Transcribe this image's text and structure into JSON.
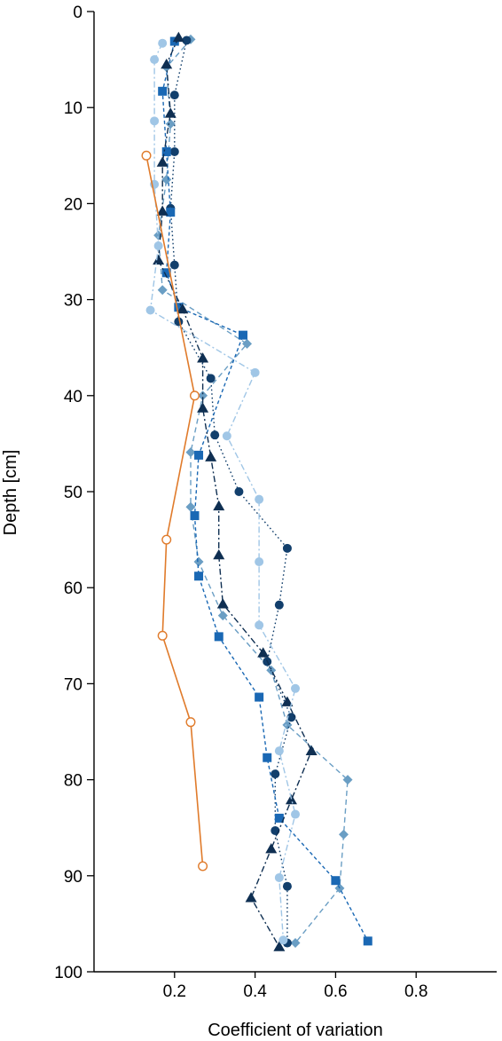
{
  "chart_data": {
    "type": "line",
    "xlabel": "Coefficient of variation",
    "ylabel": "Depth [cm]",
    "xlim": [
      0,
      1
    ],
    "ylim": [
      100,
      0
    ],
    "x_ticks": [
      0.2,
      0.4,
      0.6,
      0.8
    ],
    "x_tick_labels": [
      "0.2",
      "0.4",
      "0.6",
      "0.8"
    ],
    "y_ticks": [
      0,
      10,
      20,
      30,
      40,
      50,
      60,
      70,
      80,
      90,
      100
    ],
    "y_tick_labels": [
      "0",
      "10",
      "20",
      "30",
      "40",
      "50",
      "60",
      "70",
      "80",
      "90",
      "100"
    ],
    "grid": false,
    "series": [
      {
        "marker": "diamond",
        "line": "long-dash",
        "color": "#6a9ec4",
        "points": [
          [
            0.24,
            2.9
          ],
          [
            0.18,
            5.8
          ],
          [
            0.19,
            11.7
          ],
          [
            0.18,
            17.5
          ],
          [
            0.16,
            23.3
          ],
          [
            0.17,
            29
          ],
          [
            0.38,
            34.6
          ],
          [
            0.27,
            40
          ],
          [
            0.24,
            45.9
          ],
          [
            0.24,
            51.6
          ],
          [
            0.26,
            57.3
          ],
          [
            0.32,
            62.9
          ],
          [
            0.44,
            68.6
          ],
          [
            0.48,
            74.3
          ],
          [
            0.63,
            80
          ],
          [
            0.62,
            85.7
          ],
          [
            0.61,
            91.3
          ],
          [
            0.5,
            97
          ]
        ]
      },
      {
        "marker": "circle-filled",
        "line": "dotted",
        "color": "#123f6c",
        "points": [
          [
            0.23,
            3
          ],
          [
            0.2,
            8.7
          ],
          [
            0.2,
            14.6
          ],
          [
            0.19,
            20.5
          ],
          [
            0.2,
            26.4
          ],
          [
            0.21,
            32.3
          ],
          [
            0.29,
            38.2
          ],
          [
            0.3,
            44.1
          ],
          [
            0.36,
            50
          ],
          [
            0.48,
            55.9
          ],
          [
            0.46,
            61.8
          ],
          [
            0.43,
            67.7
          ],
          [
            0.49,
            73.5
          ],
          [
            0.45,
            79.4
          ],
          [
            0.45,
            85.3
          ],
          [
            0.48,
            91.1
          ],
          [
            0.48,
            97
          ]
        ]
      },
      {
        "marker": "square",
        "line": "short-dash",
        "color": "#1a68b4",
        "points": [
          [
            0.2,
            3.1
          ],
          [
            0.17,
            8.3
          ],
          [
            0.18,
            14.6
          ],
          [
            0.19,
            20.9
          ],
          [
            0.18,
            27.2
          ],
          [
            0.21,
            30.8
          ],
          [
            0.37,
            33.7
          ],
          [
            0.26,
            46.2
          ],
          [
            0.25,
            52.5
          ],
          [
            0.26,
            58.8
          ],
          [
            0.31,
            65.1
          ],
          [
            0.41,
            71.4
          ],
          [
            0.43,
            77.7
          ],
          [
            0.46,
            84
          ],
          [
            0.6,
            90.5
          ],
          [
            0.68,
            96.8
          ]
        ]
      },
      {
        "marker": "triangle",
        "line": "dash-dot",
        "color": "#0f2f52",
        "points": [
          [
            0.21,
            2.7
          ],
          [
            0.18,
            5.5
          ],
          [
            0.19,
            10.6
          ],
          [
            0.17,
            15.7
          ],
          [
            0.17,
            20.8
          ],
          [
            0.16,
            25.9
          ],
          [
            0.22,
            31
          ],
          [
            0.27,
            36.1
          ],
          [
            0.27,
            41.3
          ],
          [
            0.29,
            46.4
          ],
          [
            0.31,
            51.5
          ],
          [
            0.31,
            56.6
          ],
          [
            0.32,
            61.7
          ],
          [
            0.42,
            66.8
          ],
          [
            0.48,
            71.9
          ],
          [
            0.54,
            77
          ],
          [
            0.49,
            82.1
          ],
          [
            0.44,
            87.2
          ],
          [
            0.39,
            92.3
          ],
          [
            0.46,
            97.4
          ]
        ]
      },
      {
        "marker": "circle-filled",
        "line": "dash-dot",
        "color": "#a0c6e6",
        "points": [
          [
            0.17,
            3.3
          ],
          [
            0.15,
            5
          ],
          [
            0.15,
            11.4
          ],
          [
            0.15,
            18
          ],
          [
            0.16,
            24.4
          ],
          [
            0.14,
            31.1
          ],
          [
            0.4,
            37.6
          ],
          [
            0.33,
            44.2
          ],
          [
            0.41,
            50.8
          ],
          [
            0.41,
            57.3
          ],
          [
            0.41,
            63.9
          ],
          [
            0.5,
            70.5
          ],
          [
            0.46,
            77
          ],
          [
            0.5,
            83.6
          ],
          [
            0.46,
            90.2
          ],
          [
            0.47,
            96.7
          ]
        ]
      },
      {
        "marker": "circle-open",
        "line": "solid",
        "color": "#e07b2b",
        "points": [
          [
            0.13,
            15
          ],
          [
            0.25,
            40
          ],
          [
            0.18,
            55
          ],
          [
            0.17,
            65
          ],
          [
            0.24,
            74
          ],
          [
            0.27,
            89
          ]
        ]
      }
    ]
  }
}
